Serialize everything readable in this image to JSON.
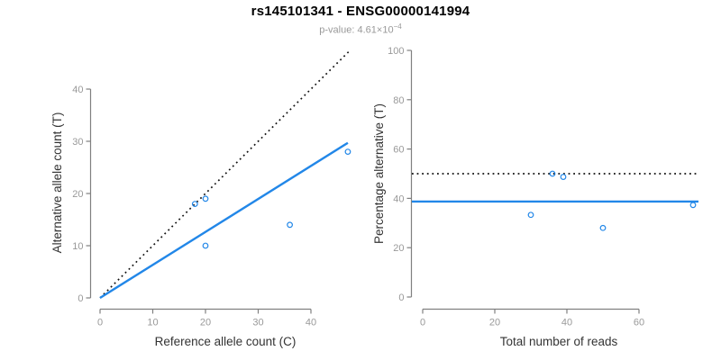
{
  "header": {
    "title": "rs145101341 - ENSG00000141994",
    "subtitle": {
      "label": "p-value: ",
      "mantissa": "4.61",
      "times": "×",
      "base": "10",
      "exponent": "−4"
    }
  },
  "colors": {
    "accent_blue": "#2287E8",
    "dotted_line": "#111111",
    "axis": "#808080",
    "tick_label": "#999999",
    "axis_label": "#333333",
    "title": "#000000",
    "subtitle": "#999999",
    "background": "#ffffff"
  },
  "chart_data": [
    {
      "type": "scatter",
      "title": "",
      "xlabel": "Reference allele count (C)",
      "ylabel": "Alternative allele count (T)",
      "xticks": [
        0,
        10,
        20,
        30,
        40
      ],
      "yticks": [
        0,
        10,
        20,
        30,
        40
      ],
      "xlim": [
        0,
        47.5
      ],
      "ylim": [
        0,
        47.5
      ],
      "grid": false,
      "legend": "none",
      "points": [
        [
          18,
          18
        ],
        [
          20,
          19
        ],
        [
          20,
          10
        ],
        [
          36,
          14
        ],
        [
          47,
          28
        ]
      ],
      "lines": [
        {
          "name": "identity-line",
          "style": "dotted",
          "color": "#111111",
          "x1": 0,
          "y1": 0,
          "x2": 47.5,
          "y2": 47.5
        },
        {
          "name": "fit-line",
          "style": "solid",
          "color": "#2287E8",
          "x1": 0,
          "y1": 0,
          "x2": 47,
          "y2": 29.7
        }
      ]
    },
    {
      "type": "scatter",
      "title": "",
      "xlabel": "Total number of reads",
      "ylabel": "Percentage alternative (T)",
      "xticks": [
        0,
        20,
        40,
        60
      ],
      "yticks": [
        0,
        20,
        40,
        60,
        80,
        100
      ],
      "xlim": [
        -3,
        76.5
      ],
      "ylim": [
        0,
        104
      ],
      "grid": false,
      "legend": "none",
      "points": [
        [
          36,
          50
        ],
        [
          39,
          48.7
        ],
        [
          30,
          33.3
        ],
        [
          50,
          28
        ],
        [
          75,
          37.3
        ]
      ],
      "lines": [
        {
          "name": "expected-50pct-line",
          "style": "dotted",
          "color": "#111111",
          "x1": -3,
          "y1": 50,
          "x2": 76.5,
          "y2": 50
        },
        {
          "name": "mean-alt-fraction-line",
          "style": "solid",
          "color": "#2287E8",
          "x1": -3,
          "y1": 38.7,
          "x2": 76.5,
          "y2": 38.7
        }
      ]
    }
  ]
}
